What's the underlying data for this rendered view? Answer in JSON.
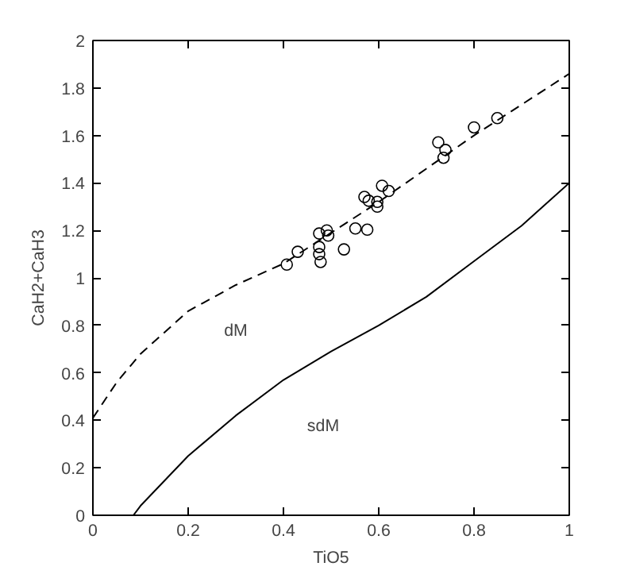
{
  "chart_data": {
    "type": "scatter",
    "xlabel": "TiO5",
    "ylabel": "CaH2+CaH3",
    "xlim": [
      0,
      1
    ],
    "ylim": [
      0,
      2
    ],
    "xticks": [
      0,
      0.2,
      0.4,
      0.6,
      0.8,
      1
    ],
    "yticks": [
      0,
      0.2,
      0.4,
      0.6,
      0.8,
      1,
      1.2,
      1.4,
      1.6,
      1.8,
      2
    ],
    "grid": false,
    "marker": "circle",
    "series": [
      {
        "color": "#000000",
        "x": [
          0.407,
          0.43,
          0.475,
          0.475,
          0.475,
          0.478,
          0.491,
          0.494,
          0.527,
          0.551,
          0.576,
          0.57,
          0.579,
          0.597,
          0.597,
          0.607,
          0.621,
          0.725,
          0.74,
          0.736,
          0.8,
          0.849
        ],
        "values": [
          1.056,
          1.11,
          1.187,
          1.13,
          1.1,
          1.067,
          1.2,
          1.178,
          1.12,
          1.208,
          1.203,
          1.341,
          1.325,
          1.32,
          1.3,
          1.388,
          1.366,
          1.571,
          1.539,
          1.506,
          1.634,
          1.673
        ]
      },
      {
        "type": "line",
        "color": "#000000",
        "line_style": "dashed",
        "marker": "none",
        "x": [
          0,
          0.05,
          0.1,
          0.2,
          0.3,
          0.4,
          0.5,
          0.6,
          0.7,
          0.8,
          0.9,
          1.0
        ],
        "values": [
          0.41,
          0.56,
          0.68,
          0.86,
          0.97,
          1.06,
          1.19,
          1.32,
          1.46,
          1.6,
          1.73,
          1.86
        ]
      },
      {
        "type": "line",
        "color": "#000000",
        "line_style": "solid",
        "marker": "none",
        "x": [
          0.085,
          0.1,
          0.2,
          0.3,
          0.4,
          0.5,
          0.6,
          0.7,
          0.8,
          0.9,
          1.0
        ],
        "values": [
          0,
          0.04,
          0.25,
          0.42,
          0.57,
          0.69,
          0.8,
          0.92,
          1.07,
          1.22,
          1.4
        ]
      }
    ],
    "annotations": [
      "dM",
      "sdM"
    ]
  }
}
